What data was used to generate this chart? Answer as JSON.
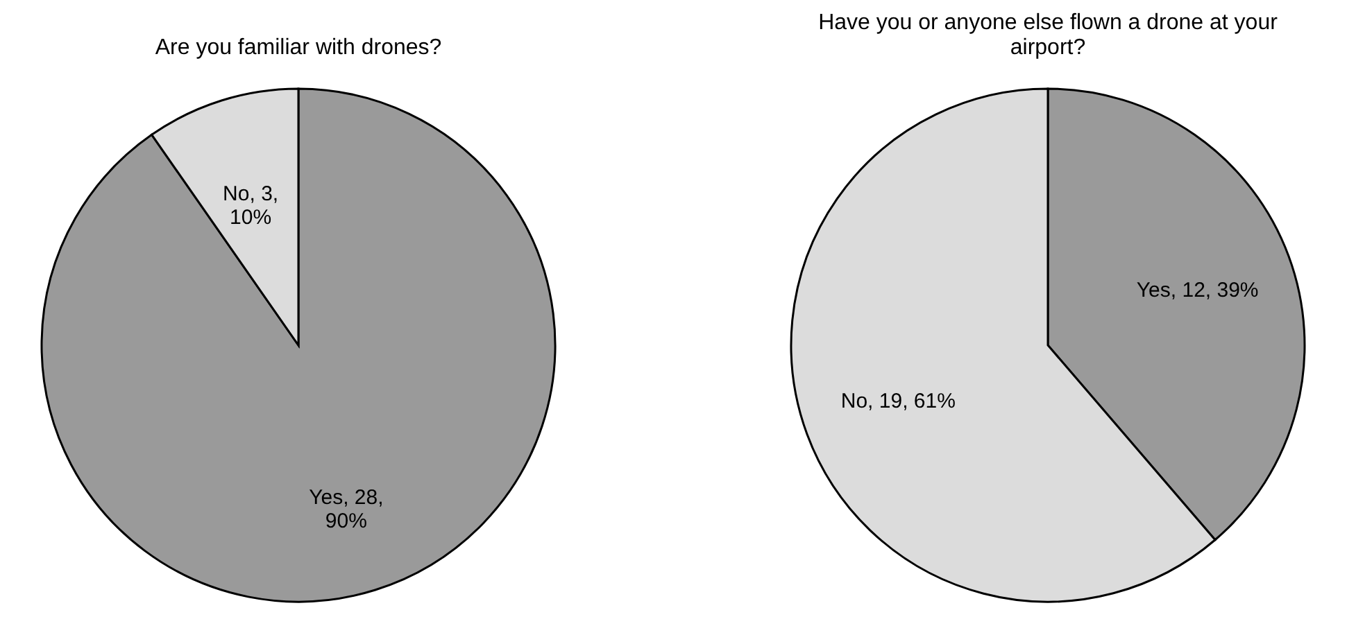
{
  "chart_data": [
    {
      "type": "pie",
      "title": "Are you familiar with drones?",
      "categories": [
        "Yes",
        "No"
      ],
      "values": [
        28,
        3
      ],
      "colors": [
        "#9a9a9a",
        "#dcdcdc"
      ],
      "value_labels": [
        "28, 90%",
        "3, 10%"
      ],
      "legend": false
    },
    {
      "type": "pie",
      "title": "Have you or anyone else flown a drone at your airport?",
      "categories": [
        "Yes",
        "No"
      ],
      "values": [
        12,
        19
      ],
      "colors": [
        "#8c8c8c",
        "#d4d4d4"
      ],
      "value_labels": [
        "12, 39%",
        "19, 61%"
      ],
      "legend": false
    }
  ]
}
